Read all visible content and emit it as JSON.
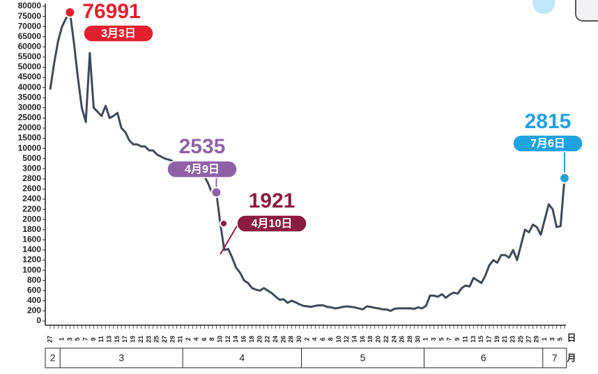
{
  "chart_data": {
    "type": "line",
    "yscale": "piecewise",
    "color": "#3e4a58",
    "categories": [
      "27",
      null,
      null,
      "1",
      null,
      "3",
      null,
      "5",
      null,
      "7",
      null,
      "9",
      null,
      "11",
      null,
      "13",
      null,
      "15",
      null,
      "17",
      null,
      "19",
      null,
      "21",
      null,
      "23",
      null,
      "25",
      null,
      "27",
      null,
      "29",
      null,
      "31",
      null,
      "2",
      null,
      "4",
      null,
      "6",
      null,
      "8",
      null,
      "10",
      null,
      "12",
      null,
      "14",
      null,
      "16",
      null,
      "18",
      null,
      "20",
      null,
      "22",
      null,
      "24",
      null,
      "26",
      null,
      "28",
      null,
      "30",
      null,
      "2",
      null,
      "4",
      null,
      "6",
      null,
      "8",
      null,
      "10",
      null,
      "12",
      null,
      "14",
      null,
      "16",
      null,
      "18",
      null,
      "20",
      null,
      "22",
      null,
      "24",
      null,
      "26",
      null,
      "28",
      null,
      "30",
      null,
      "1",
      null,
      "3",
      null,
      "5",
      null,
      "7",
      null,
      "9",
      null,
      "11",
      null,
      "13",
      null,
      "15",
      null,
      "17",
      null,
      "19",
      null,
      "21",
      null,
      "23",
      null,
      "25",
      null,
      "27",
      null,
      "29",
      null,
      "1",
      null,
      "3",
      null,
      "5",
      null
    ],
    "values": [
      39000,
      52000,
      63000,
      70000,
      74000,
      76991,
      62000,
      45000,
      30000,
      23000,
      57000,
      30000,
      28000,
      26000,
      31000,
      25000,
      26000,
      27500,
      20000,
      18000,
      14000,
      12000,
      12000,
      11000,
      11000,
      9000,
      9000,
      7000,
      6000,
      5000,
      4800,
      4500,
      4000,
      3800,
      3500,
      3000,
      2980,
      2950,
      2900,
      2850,
      2700,
      2500,
      2535,
      1921,
      1400,
      1420,
      1250,
      1050,
      950,
      800,
      750,
      650,
      620,
      600,
      650,
      600,
      550,
      480,
      420,
      430,
      360,
      400,
      370,
      330,
      300,
      290,
      280,
      300,
      310,
      310,
      280,
      270,
      250,
      260,
      280,
      290,
      280,
      270,
      250,
      230,
      290,
      280,
      260,
      250,
      230,
      230,
      200,
      240,
      250,
      250,
      250,
      250,
      240,
      270,
      250,
      300,
      500,
      500,
      480,
      530,
      460,
      520,
      560,
      540,
      650,
      700,
      680,
      850,
      800,
      750,
      900,
      1100,
      1200,
      1150,
      1300,
      1300,
      1250,
      1400,
      1200,
      1500,
      1800,
      1750,
      1900,
      1850,
      1700,
      2000,
      2300,
      2200,
      1850,
      1870,
      2815
    ],
    "ylim": [
      0,
      80000
    ],
    "yticks": [
      0,
      200,
      400,
      600,
      800,
      1000,
      1200,
      1400,
      1600,
      1800,
      2000,
      2200,
      2400,
      2600,
      2800,
      3000,
      5000,
      10000,
      15000,
      20000,
      25000,
      30000,
      35000,
      40000,
      45000,
      50000,
      55000,
      60000,
      65000,
      70000,
      75000,
      80000
    ],
    "x_unit": "日",
    "month_unit": "月",
    "months": [
      "2",
      "3",
      "4",
      "5",
      "6",
      "7"
    ],
    "point_labels": {
      "5": "3月3日",
      "42": "4月9日",
      "43": "4月10日",
      "130": "7月6日"
    },
    "point_label_colors": {
      "5": "#e3202e",
      "42": "#8f62a8",
      "43": "#8a1c42",
      "130": "#1fa2e0"
    }
  }
}
